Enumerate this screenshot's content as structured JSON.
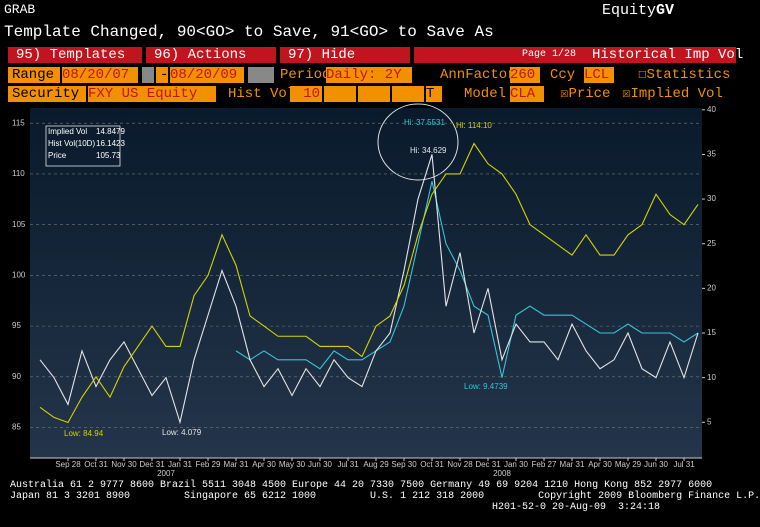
{
  "header": {
    "left": "GRAB",
    "right_main": "Equity",
    "right_code": "GV",
    "message": "Template Changed, 90<GO> to Save, 91<GO> to Save As"
  },
  "menu": {
    "items": [
      "95) Templates",
      "96) Actions",
      "97) Hide"
    ],
    "page": "Page 1/28",
    "title": "Historical Imp Vol"
  },
  "row1": {
    "range_label": "Range",
    "start": "08/20/07",
    "dash": "-",
    "end": "08/20/09",
    "period_label": "Period",
    "period": "Daily: 2Y",
    "annfactor_label": "AnnFactor",
    "annfactor": "260",
    "ccy_label": "Ccy",
    "ccy": "LCL",
    "statistics": "Statistics"
  },
  "row2": {
    "security_label": "Security",
    "security": "FXY US Equity",
    "histvol_label": "Hist Vol",
    "histvol": "10",
    "t": "T",
    "model_label": "Model",
    "model": "CLA",
    "price": "Price",
    "implied": "Implied Vol"
  },
  "chart_data": {
    "type": "line",
    "categories": [
      null,
      null,
      "Sep 28",
      null,
      "Oct 31",
      null,
      "Nov 30",
      null,
      "Dec 31",
      null,
      "Jan 31",
      null,
      "Feb 29",
      null,
      "Mar 31",
      null,
      "Apr 30",
      null,
      "May 30",
      null,
      "Jun 30",
      null,
      "Jul 31",
      null,
      "Aug 29",
      null,
      "Sep 30",
      null,
      "Oct 31",
      null,
      "Nov 28",
      null,
      "Dec 31",
      null,
      "Jan 30",
      null,
      "Feb 27",
      null,
      "Mar 31",
      null,
      "Apr 30",
      null,
      "May 29",
      null,
      "Jun 30",
      null,
      "Jul 31",
      null
    ],
    "year_labels": [
      "2007",
      "2008"
    ],
    "ylim": [
      82,
      116.5
    ],
    "yticks": [
      85,
      90,
      95,
      100,
      105,
      110,
      115
    ],
    "y2lim": [
      1,
      40.2
    ],
    "y2ticks": [
      5,
      10,
      15,
      20,
      25,
      30,
      35,
      40
    ],
    "grid": true,
    "series": [
      {
        "name": "Implied Vol",
        "last": 14.8479,
        "color": "#38c4d4",
        "axis": "y2",
        "values": [
          null,
          null,
          null,
          null,
          null,
          null,
          null,
          null,
          null,
          null,
          null,
          null,
          null,
          null,
          13,
          12,
          13,
          12,
          12,
          12,
          11,
          13,
          12,
          12,
          13,
          14,
          18,
          25,
          32,
          25,
          22,
          18,
          17,
          10,
          17,
          18,
          17,
          17,
          17,
          16,
          15,
          15,
          16,
          15,
          15,
          15,
          14,
          15
        ]
      },
      {
        "name": "Hist Vol(10D)",
        "last": 16.1423,
        "color": "#e4e4e4",
        "axis": "y2",
        "values": [
          12,
          10,
          7,
          13,
          9,
          12,
          14,
          11,
          8,
          10,
          5,
          12,
          17,
          22,
          18,
          12,
          9,
          11,
          8,
          11,
          9,
          12,
          10,
          9,
          13,
          15,
          22,
          30,
          35,
          18,
          24,
          15,
          20,
          12,
          16,
          14,
          14,
          12,
          16,
          13,
          11,
          12,
          15,
          11,
          10,
          14,
          10,
          15
        ]
      },
      {
        "name": "Price",
        "last": 105.73,
        "color": "#d4d400",
        "values": [
          87,
          86,
          85.5,
          88,
          90,
          88,
          91,
          93,
          95,
          93,
          93,
          98,
          100,
          104,
          101,
          96,
          95,
          94,
          94,
          94,
          93,
          93,
          93,
          92,
          95,
          96,
          99,
          104,
          108,
          110,
          110,
          113,
          111,
          110,
          108,
          105,
          104,
          103,
          102,
          104,
          102,
          102,
          104,
          105,
          108,
          106,
          105,
          107
        ]
      }
    ],
    "annotations": [
      "Hi: 37.5531",
      "Hi: 114.10",
      "Hi: 34.629",
      "Low: 84.94",
      "Low: 4.079",
      "Low: 9.4739"
    ]
  },
  "footer": [
    "Australia 61 2 9777 8600 Brazil 5511 3048 4500 Europe 44 20 7330 7500 Germany 49 69 9204 1210 Hong Kong 852 2977 6000",
    "Japan 81 3 3201 8900         Singapore 65 6212 1000         U.S. 1 212 318 2000         Copyright 2009 Bloomberg Finance L.P.",
    "H201-52-0 20-Aug-09  3:24:18"
  ]
}
